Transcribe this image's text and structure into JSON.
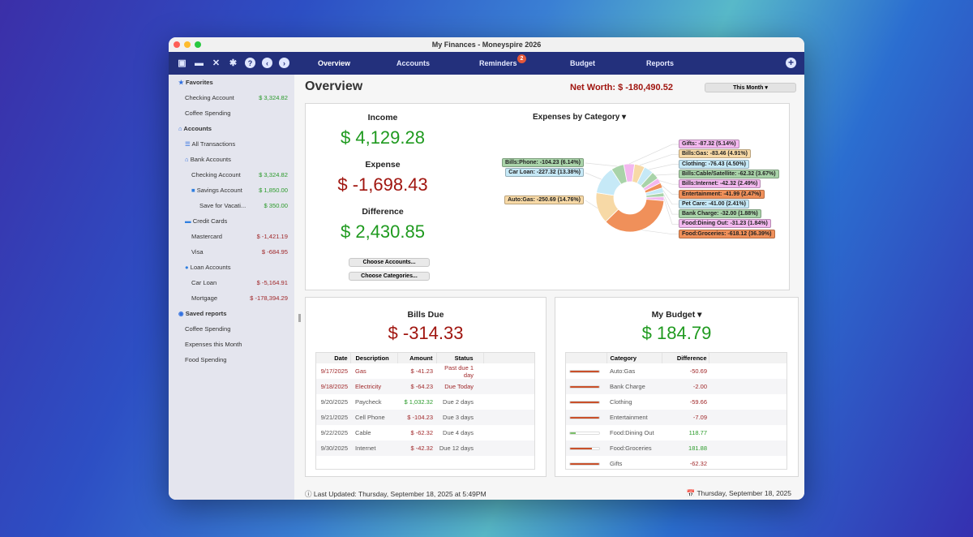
{
  "window": {
    "title": "My Finances - Moneyspire 2026"
  },
  "nav": {
    "tabs": [
      "Overview",
      "Accounts",
      "Reminders",
      "Budget",
      "Reports"
    ],
    "reminders_badge": "2",
    "active": "Overview"
  },
  "sidebar": {
    "favorites": {
      "label": "Favorites",
      "items": [
        {
          "label": "Checking Account",
          "value": "$ 3,324.82",
          "tone": "g"
        },
        {
          "label": "Coffee Spending",
          "value": ""
        }
      ]
    },
    "accounts": {
      "label": "Accounts",
      "all": "All Transactions",
      "bank": {
        "label": "Bank Accounts",
        "items": [
          {
            "label": "Checking Account",
            "value": "$ 3,324.82"
          },
          {
            "label": "Savings Account",
            "value": "$ 1,850.00"
          },
          {
            "label": "Save for Vacati...",
            "value": "$ 350.00"
          }
        ]
      },
      "credit": {
        "label": "Credit Cards",
        "items": [
          {
            "label": "Mastercard",
            "value": "$ -1,421.19"
          },
          {
            "label": "Visa",
            "value": "$ -684.95"
          }
        ]
      },
      "loan": {
        "label": "Loan Accounts",
        "items": [
          {
            "label": "Car Loan",
            "value": "$ -5,164.91"
          },
          {
            "label": "Mortgage",
            "value": "$ -178,394.29"
          }
        ]
      }
    },
    "saved": {
      "label": "Saved reports",
      "items": [
        "Coffee Spending",
        "Expenses this Month",
        "Food Spending"
      ]
    }
  },
  "overview": {
    "title": "Overview",
    "net_worth": "Net Worth: $ -180,490.52",
    "period": "This Month ▾",
    "income_label": "Income",
    "income": "$ 4,129.28",
    "expense_label": "Expense",
    "expense": "$ -1,698.43",
    "difference_label": "Difference",
    "difference": "$ 2,430.85",
    "choose_accounts": "Choose Accounts...",
    "choose_categories": "Choose Categories...",
    "expenses_title": "Expenses by Category"
  },
  "chart_data": {
    "type": "pie",
    "title": "Expenses by Category",
    "donut": true,
    "slices": [
      {
        "label": "Gifts: -87.32 (5.14%)",
        "value": 87.32,
        "color": "#f3b8ef"
      },
      {
        "label": "Bills:Gas: -83.46 (4.91%)",
        "value": 83.46,
        "color": "#f7d9a6"
      },
      {
        "label": "Clothing: -76.43 (4.50%)",
        "value": 76.43,
        "color": "#c6e9f7"
      },
      {
        "label": "Bills:Cable/Satellite: -62.32 (3.67%)",
        "value": 62.32,
        "color": "#a9d3a9"
      },
      {
        "label": "Bills:Internet: -42.32 (2.49%)",
        "value": 42.32,
        "color": "#f3b8ef"
      },
      {
        "label": "Entertainment: -41.99 (2.47%)",
        "value": 41.99,
        "color": "#f0905a"
      },
      {
        "label": "Pet Care: -41.00 (2.41%)",
        "value": 41.0,
        "color": "#c6e9f7"
      },
      {
        "label": "Bank Charge: -32.00 (1.88%)",
        "value": 32.0,
        "color": "#a9d3a9"
      },
      {
        "label": "Food:Dining Out: -31.23 (1.84%)",
        "value": 31.23,
        "color": "#f3b8ef"
      },
      {
        "label": "Food:Groceries: -618.12 (36.39%)",
        "value": 618.12,
        "color": "#f0905a"
      },
      {
        "label": "Auto:Gas: -250.69 (14.76%)",
        "value": 250.69,
        "color": "#f7d9a6"
      },
      {
        "label": "Car Loan: -227.32 (13.38%)",
        "value": 227.32,
        "color": "#c6e9f7"
      },
      {
        "label": "Bills:Phone: -104.23 (6.14%)",
        "value": 104.23,
        "color": "#a9d3a9"
      }
    ]
  },
  "bills": {
    "title": "Bills Due",
    "total": "$ -314.33",
    "columns": [
      "Date",
      "Description",
      "Amount",
      "Status"
    ],
    "rows": [
      [
        "9/17/2025",
        "Gas",
        "$ -41.23",
        "Past due 1 day",
        "due"
      ],
      [
        "9/18/2025",
        "Electricity",
        "$ -64.23",
        "Due Today",
        "due"
      ],
      [
        "9/20/2025",
        "Paycheck",
        "$ 1,032.32",
        "Due 2 days",
        "in"
      ],
      [
        "9/21/2025",
        "Cell Phone",
        "$ -104.23",
        "Due 3 days",
        "out"
      ],
      [
        "9/22/2025",
        "Cable",
        "$ -62.32",
        "Due 4 days",
        "out"
      ],
      [
        "9/30/2025",
        "Internet",
        "$ -42.32",
        "Due 12 days",
        "out"
      ]
    ]
  },
  "budget": {
    "title": "My Budget ▾",
    "total": "$ 184.79",
    "columns": [
      "",
      "Category",
      "Difference"
    ],
    "rows": [
      {
        "category": "Auto:Gas",
        "difference": "-50.69",
        "progress": 100
      },
      {
        "category": "Bank Charge",
        "difference": "-2.00",
        "progress": 100
      },
      {
        "category": "Clothing",
        "difference": "-59.66",
        "progress": 100
      },
      {
        "category": "Entertainment",
        "difference": "-7.09",
        "progress": 100
      },
      {
        "category": "Food:Dining Out",
        "difference": "118.77",
        "progress": 20
      },
      {
        "category": "Food:Groceries",
        "difference": "181.88",
        "progress": 75
      },
      {
        "category": "Gifts",
        "difference": "-62.32",
        "progress": 100
      }
    ]
  },
  "footer": {
    "last_updated": "ⓘ Last Updated: Thursday, September 18, 2025 at 5:49PM",
    "date": "📅 Thursday, September 18, 2025"
  }
}
